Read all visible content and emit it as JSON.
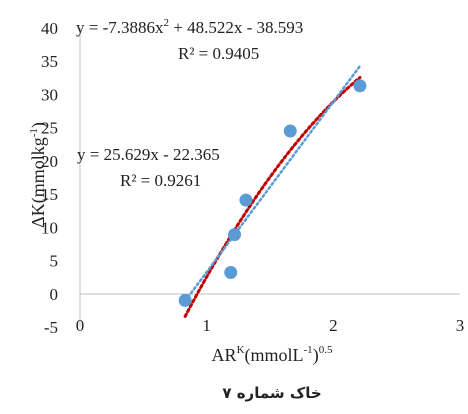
{
  "chart_data": {
    "type": "scatter",
    "xlabel": "AR^K(mmolL^-1)^0.5",
    "xlabel_parts": {
      "base": "AR",
      "sup1": "K",
      "mid": "(mmolL",
      "sup2": "-1",
      "close": ")",
      "sup3": "0.5"
    },
    "ylabel": "ΔK(mmolkg^-1)",
    "ylabel_parts": {
      "base": "ΔK(mmolkg",
      "sup": "-1",
      "close": ")"
    },
    "xlim": [
      0,
      3
    ],
    "ylim": [
      -5,
      40
    ],
    "x_ticks": [
      0,
      1,
      2,
      3
    ],
    "x_tick_labels": [
      "0",
      "1",
      "2",
      "3"
    ],
    "y_ticks": [
      -5,
      0,
      5,
      10,
      15,
      20,
      25,
      30,
      35,
      40
    ],
    "y_tick_labels": [
      "-5",
      "0",
      "5",
      "10",
      "15",
      "20",
      "25",
      "30",
      "35",
      "40"
    ],
    "grid": false,
    "legend": "none",
    "series": [
      {
        "points": [
          {
            "x": 0.83,
            "y": -1.0
          },
          {
            "x": 1.19,
            "y": 3.2
          },
          {
            "x": 1.22,
            "y": 8.9
          },
          {
            "x": 1.31,
            "y": 14.1
          },
          {
            "x": 1.66,
            "y": 24.5
          },
          {
            "x": 2.21,
            "y": 31.3
          }
        ],
        "color": "#5b9bd5"
      }
    ],
    "trendlines": [
      {
        "kind": "polynomial",
        "equation_text": "y = -7.3886x² + 48.522x - 38.593",
        "eq_parts": {
          "pre": "y = -7.3886x",
          "sup": "2",
          "post": " + 48.522x - 38.593"
        },
        "r2_text": "R² = 0.9405",
        "coefficients": [
          -7.3886,
          48.522,
          -38.593
        ],
        "x_range": [
          0.83,
          2.21
        ],
        "color": "#c00000",
        "dash": "dotted"
      },
      {
        "kind": "linear",
        "equation_text": "y = 25.629x - 22.365",
        "r2_text": "R² = 0.9261",
        "coefficients": [
          25.629,
          -22.365
        ],
        "x_range": [
          0.83,
          2.21
        ],
        "color": "#5b9bd5",
        "dash": "dotted"
      }
    ],
    "caption": "خاک شماره ۷"
  }
}
